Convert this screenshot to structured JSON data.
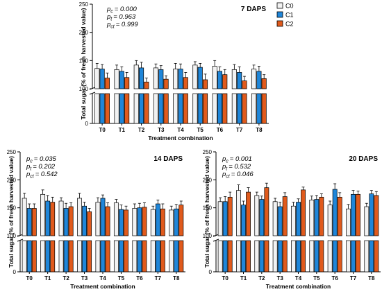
{
  "legend": [
    {
      "label": "C0",
      "color": "#f2f2f2"
    },
    {
      "label": "C1",
      "color": "#1f86d9"
    },
    {
      "label": "C2",
      "color": "#e05a1c"
    }
  ],
  "chart_data": [
    {
      "type": "bar",
      "title": "7 DAPS",
      "xlabel": "Treatment combination",
      "ylabel": "Total sugar (% of fresh harvested value)",
      "categories": [
        "T0",
        "T1",
        "T2",
        "T3",
        "T4",
        "T5",
        "T6",
        "T7",
        "T8"
      ],
      "y_ticks_upper": [
        100,
        150,
        200,
        250
      ],
      "y_tick_lower": 0,
      "ylim_upper": [
        100,
        250
      ],
      "axis_break": true,
      "stats": [
        {
          "label": "p",
          "sub": "c",
          "value": "= 0.000"
        },
        {
          "label": "p",
          "sub": "t",
          "value": "= 0.963"
        },
        {
          "label": "p",
          "sub": "ct",
          "value": "= 0.999"
        }
      ],
      "series": [
        {
          "name": "C0",
          "values": [
            136,
            134,
            142,
            137,
            135,
            142,
            140,
            134,
            135
          ],
          "errors": [
            9,
            8,
            8,
            7,
            10,
            6,
            10,
            9,
            7
          ]
        },
        {
          "name": "C1",
          "values": [
            135,
            131,
            137,
            134,
            135,
            138,
            131,
            129,
            131
          ],
          "errors": [
            8,
            8,
            10,
            7,
            9,
            7,
            8,
            10,
            9
          ]
        },
        {
          "name": "C2",
          "values": [
            119,
            120,
            112,
            117,
            120,
            116,
            125,
            114,
            118
          ],
          "errors": [
            9,
            9,
            7,
            6,
            9,
            10,
            9,
            8,
            7
          ]
        }
      ]
    },
    {
      "type": "bar",
      "title": "14 DAPS",
      "xlabel": "Treatment combination",
      "ylabel": "Total sugar (% of fresh harvested value)",
      "categories": [
        "T0",
        "T1",
        "T2",
        "T3",
        "T4",
        "T5",
        "T6",
        "T7",
        "T8"
      ],
      "y_ticks_upper": [
        100,
        150,
        200,
        250
      ],
      "y_tick_lower": 0,
      "ylim_upper": [
        100,
        250
      ],
      "axis_break": true,
      "stats": [
        {
          "label": "p",
          "sub": "c",
          "value": "= 0.035"
        },
        {
          "label": "p",
          "sub": "t",
          "value": "= 0.202"
        },
        {
          "label": "p",
          "sub": "ct",
          "value": "= 0.542"
        }
      ],
      "series": [
        {
          "name": "C0",
          "values": [
            167,
            174,
            162,
            167,
            160,
            159,
            149,
            147,
            146
          ],
          "errors": [
            9,
            8,
            6,
            9,
            8,
            6,
            8,
            6,
            7
          ]
        },
        {
          "name": "C1",
          "values": [
            149,
            162,
            149,
            153,
            167,
            147,
            150,
            157,
            148
          ],
          "errors": [
            8,
            10,
            9,
            7,
            6,
            8,
            8,
            7,
            8
          ]
        },
        {
          "name": "C2",
          "values": [
            149,
            160,
            152,
            143,
            152,
            146,
            151,
            148,
            155
          ],
          "errors": [
            8,
            9,
            7,
            6,
            7,
            7,
            8,
            9,
            7
          ]
        }
      ]
    },
    {
      "type": "bar",
      "title": "20 DAPS",
      "xlabel": "Treatment combination",
      "ylabel": "Total sugar (% of fresh harvested value)",
      "categories": [
        "T0",
        "T1",
        "T2",
        "T3",
        "T4",
        "T5",
        "T6",
        "T7",
        "T8"
      ],
      "y_ticks_upper": [
        100,
        150,
        200,
        250
      ],
      "y_tick_lower": 0,
      "ylim_upper": [
        100,
        250
      ],
      "axis_break": true,
      "stats": [
        {
          "label": "p",
          "sub": "c",
          "value": "= 0.001"
        },
        {
          "label": "p",
          "sub": "t",
          "value": "= 0.532"
        },
        {
          "label": "p",
          "sub": "ct",
          "value": "= 0.046"
        }
      ],
      "series": [
        {
          "name": "C0",
          "values": [
            161,
            181,
            172,
            161,
            153,
            164,
            155,
            148,
            152
          ],
          "errors": [
            7,
            10,
            6,
            6,
            7,
            7,
            7,
            8,
            6
          ]
        },
        {
          "name": "C1",
          "values": [
            161,
            155,
            165,
            152,
            160,
            165,
            183,
            174,
            175
          ],
          "errors": [
            9,
            7,
            6,
            8,
            6,
            7,
            10,
            7,
            6
          ]
        },
        {
          "name": "C2",
          "values": [
            169,
            178,
            186,
            170,
            182,
            169,
            169,
            174,
            172
          ],
          "errors": [
            9,
            8,
            8,
            7,
            5,
            6,
            8,
            6,
            7
          ]
        }
      ]
    }
  ]
}
